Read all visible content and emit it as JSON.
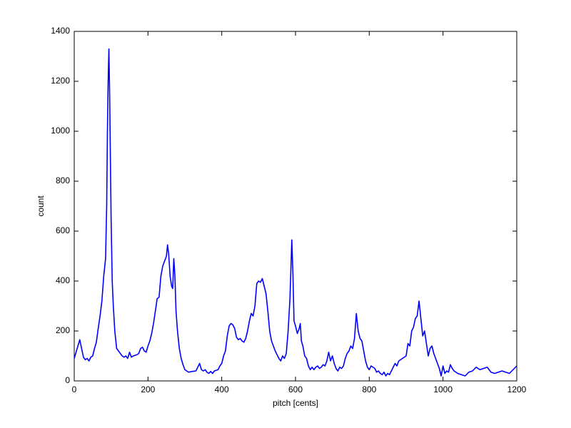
{
  "chart_data": {
    "type": "line",
    "x_label": "pitch [cents]",
    "y_label": "count",
    "x": [
      0,
      10,
      15,
      20,
      25,
      30,
      35,
      40,
      45,
      50,
      55,
      60,
      65,
      70,
      75,
      80,
      85,
      88,
      90,
      92,
      94,
      96,
      98,
      100,
      103,
      106,
      110,
      115,
      120,
      125,
      130,
      135,
      140,
      145,
      150,
      155,
      160,
      170,
      175,
      180,
      185,
      190,
      195,
      200,
      205,
      210,
      215,
      220,
      225,
      230,
      235,
      240,
      245,
      250,
      253,
      256,
      260,
      264,
      267,
      270,
      273,
      276,
      280,
      285,
      290,
      295,
      300,
      305,
      310,
      320,
      330,
      340,
      345,
      350,
      355,
      360,
      365,
      370,
      375,
      380,
      390,
      395,
      400,
      405,
      410,
      415,
      420,
      425,
      430,
      435,
      440,
      445,
      450,
      455,
      460,
      465,
      470,
      475,
      480,
      485,
      490,
      495,
      500,
      505,
      510,
      515,
      520,
      525,
      530,
      535,
      540,
      545,
      550,
      555,
      560,
      565,
      570,
      575,
      580,
      585,
      590,
      593,
      596,
      600,
      605,
      610,
      613,
      616,
      620,
      625,
      630,
      635,
      640,
      645,
      650,
      655,
      660,
      665,
      670,
      675,
      680,
      685,
      690,
      695,
      700,
      705,
      710,
      715,
      720,
      725,
      730,
      735,
      740,
      745,
      750,
      755,
      760,
      765,
      770,
      775,
      780,
      785,
      790,
      795,
      800,
      805,
      810,
      815,
      820,
      825,
      830,
      835,
      840,
      845,
      850,
      855,
      860,
      865,
      870,
      875,
      880,
      890,
      900,
      905,
      910,
      915,
      920,
      925,
      930,
      935,
      940,
      945,
      950,
      955,
      960,
      965,
      970,
      975,
      980,
      985,
      990,
      995,
      1000,
      1005,
      1010,
      1015,
      1020,
      1025,
      1030,
      1040,
      1050,
      1060,
      1070,
      1080,
      1090,
      1100,
      1110,
      1120,
      1130,
      1140,
      1150,
      1160,
      1170,
      1180,
      1190,
      1200
    ],
    "series": [
      {
        "color": "#0000ff",
        "values": [
          90,
          140,
          165,
          130,
          95,
          85,
          90,
          80,
          95,
          100,
          130,
          155,
          210,
          260,
          320,
          420,
          490,
          700,
          1000,
          1200,
          1330,
          1150,
          900,
          650,
          400,
          300,
          200,
          130,
          120,
          110,
          100,
          95,
          100,
          90,
          115,
          95,
          100,
          105,
          110,
          130,
          135,
          120,
          115,
          140,
          160,
          190,
          230,
          280,
          330,
          335,
          420,
          460,
          480,
          500,
          545,
          510,
          420,
          380,
          370,
          490,
          420,
          280,
          200,
          130,
          90,
          65,
          45,
          40,
          35,
          38,
          40,
          70,
          45,
          40,
          45,
          35,
          30,
          38,
          30,
          40,
          45,
          60,
          70,
          100,
          120,
          180,
          220,
          230,
          225,
          210,
          175,
          165,
          170,
          160,
          155,
          170,
          200,
          240,
          270,
          260,
          300,
          390,
          400,
          395,
          410,
          380,
          350,
          280,
          200,
          160,
          140,
          120,
          105,
          90,
          80,
          100,
          90,
          110,
          200,
          330,
          565,
          430,
          240,
          220,
          190,
          210,
          230,
          160,
          140,
          100,
          90,
          60,
          45,
          55,
          45,
          55,
          60,
          50,
          55,
          65,
          60,
          80,
          115,
          80,
          100,
          70,
          50,
          40,
          55,
          50,
          60,
          90,
          110,
          120,
          140,
          130,
          170,
          270,
          200,
          170,
          160,
          120,
          80,
          55,
          45,
          60,
          55,
          50,
          35,
          40,
          30,
          25,
          35,
          20,
          30,
          25,
          40,
          55,
          70,
          60,
          80,
          90,
          100,
          150,
          140,
          200,
          215,
          250,
          260,
          320,
          250,
          180,
          200,
          150,
          100,
          130,
          140,
          110,
          90,
          70,
          50,
          20,
          60,
          30,
          40,
          35,
          65,
          50,
          40,
          30,
          25,
          20,
          35,
          40,
          55,
          45,
          50,
          55,
          35,
          30,
          35,
          40,
          35,
          30,
          45,
          60
        ]
      }
    ],
    "xlim": [
      0,
      1200
    ],
    "xticks": [
      0,
      200,
      400,
      600,
      800,
      1000,
      1200
    ],
    "ylim": [
      0,
      1400
    ],
    "yticks": [
      0,
      200,
      400,
      600,
      800,
      1000,
      1200,
      1400
    ]
  }
}
